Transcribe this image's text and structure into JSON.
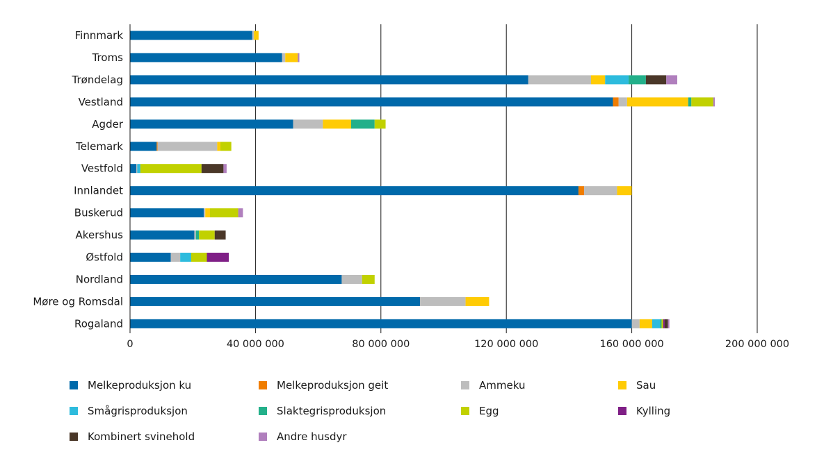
{
  "chart_data": {
    "type": "bar",
    "orientation": "horizontal",
    "stacked": true,
    "title": "",
    "xlabel": "",
    "ylabel": "",
    "xlim": [
      0,
      200000000
    ],
    "xticks": [
      0,
      40000000,
      80000000,
      120000000,
      160000000,
      200000000
    ],
    "xtick_labels": [
      "0",
      "40 000 000",
      "80 000 000",
      "120 000 000",
      "160 000 000",
      "200 000 000"
    ],
    "grid": "vertical",
    "legend_position": "bottom",
    "categories": [
      "Finnmark",
      "Troms",
      "Trøndelag",
      "Vestland",
      "Agder",
      "Telemark",
      "Vestfold",
      "Innlandet",
      "Buskerud",
      "Akershus",
      "Østfold",
      "Nordland",
      "Møre og Romsdal",
      "Rogaland"
    ],
    "series": [
      {
        "name": "Melkeproduksjon ku",
        "color": "#0069aa",
        "values": [
          39000000,
          48500000,
          127000000,
          154000000,
          52000000,
          8500000,
          2000000,
          143000000,
          23500000,
          20500000,
          13000000,
          67500000,
          92500000,
          160000000
        ]
      },
      {
        "name": "Melkeproduksjon geit",
        "color": "#f07d00",
        "values": [
          0,
          0,
          0,
          1800000,
          0,
          300000,
          0,
          1800000,
          0,
          0,
          0,
          0,
          0,
          0
        ]
      },
      {
        "name": "Ammeku",
        "color": "#bdbdbd",
        "values": [
          500000,
          1000000,
          20000000,
          2700000,
          9500000,
          19000000,
          300000,
          10500000,
          500000,
          500000,
          3000000,
          6500000,
          14500000,
          2500000
        ]
      },
      {
        "name": "Sau",
        "color": "#ffcb05",
        "values": [
          1500000,
          4000000,
          4500000,
          19500000,
          9000000,
          1000000,
          0,
          4700000,
          1500000,
          0,
          0,
          0,
          7500000,
          4000000
        ]
      },
      {
        "name": "Smågrisproduksjon",
        "color": "#2dbbdd",
        "values": [
          0,
          0,
          7500000,
          0,
          0,
          0,
          1000000,
          0,
          0,
          0,
          3500000,
          0,
          0,
          2500000
        ]
      },
      {
        "name": "Slaktegrisproduksjon",
        "color": "#23b08a",
        "values": [
          0,
          0,
          5500000,
          1000000,
          7500000,
          0,
          0,
          0,
          0,
          1000000,
          0,
          0,
          0,
          500000
        ]
      },
      {
        "name": "Egg",
        "color": "#c1d100",
        "values": [
          0,
          0,
          0,
          7000000,
          3500000,
          3500000,
          19500000,
          0,
          9000000,
          5000000,
          5000000,
          4000000,
          0,
          500000
        ]
      },
      {
        "name": "Kylling",
        "color": "#7f1f86",
        "values": [
          0,
          0,
          0,
          0,
          0,
          0,
          0,
          0,
          0,
          0,
          7000000,
          0,
          0,
          500000
        ]
      },
      {
        "name": "Kombinert svinehold",
        "color": "#4a3728",
        "values": [
          0,
          0,
          6500000,
          0,
          0,
          0,
          7000000,
          0,
          0,
          3500000,
          0,
          0,
          0,
          1000000
        ]
      },
      {
        "name": "Andre husdyr",
        "color": "#b07fbd",
        "values": [
          0,
          500000,
          3500000,
          500000,
          0,
          0,
          1000000,
          0,
          1500000,
          0,
          0,
          0,
          0,
          500000
        ]
      }
    ]
  },
  "colors": {
    "axis": "#1a1a1a",
    "grid": "#1a1a1a",
    "text": "#1a1a1a"
  }
}
